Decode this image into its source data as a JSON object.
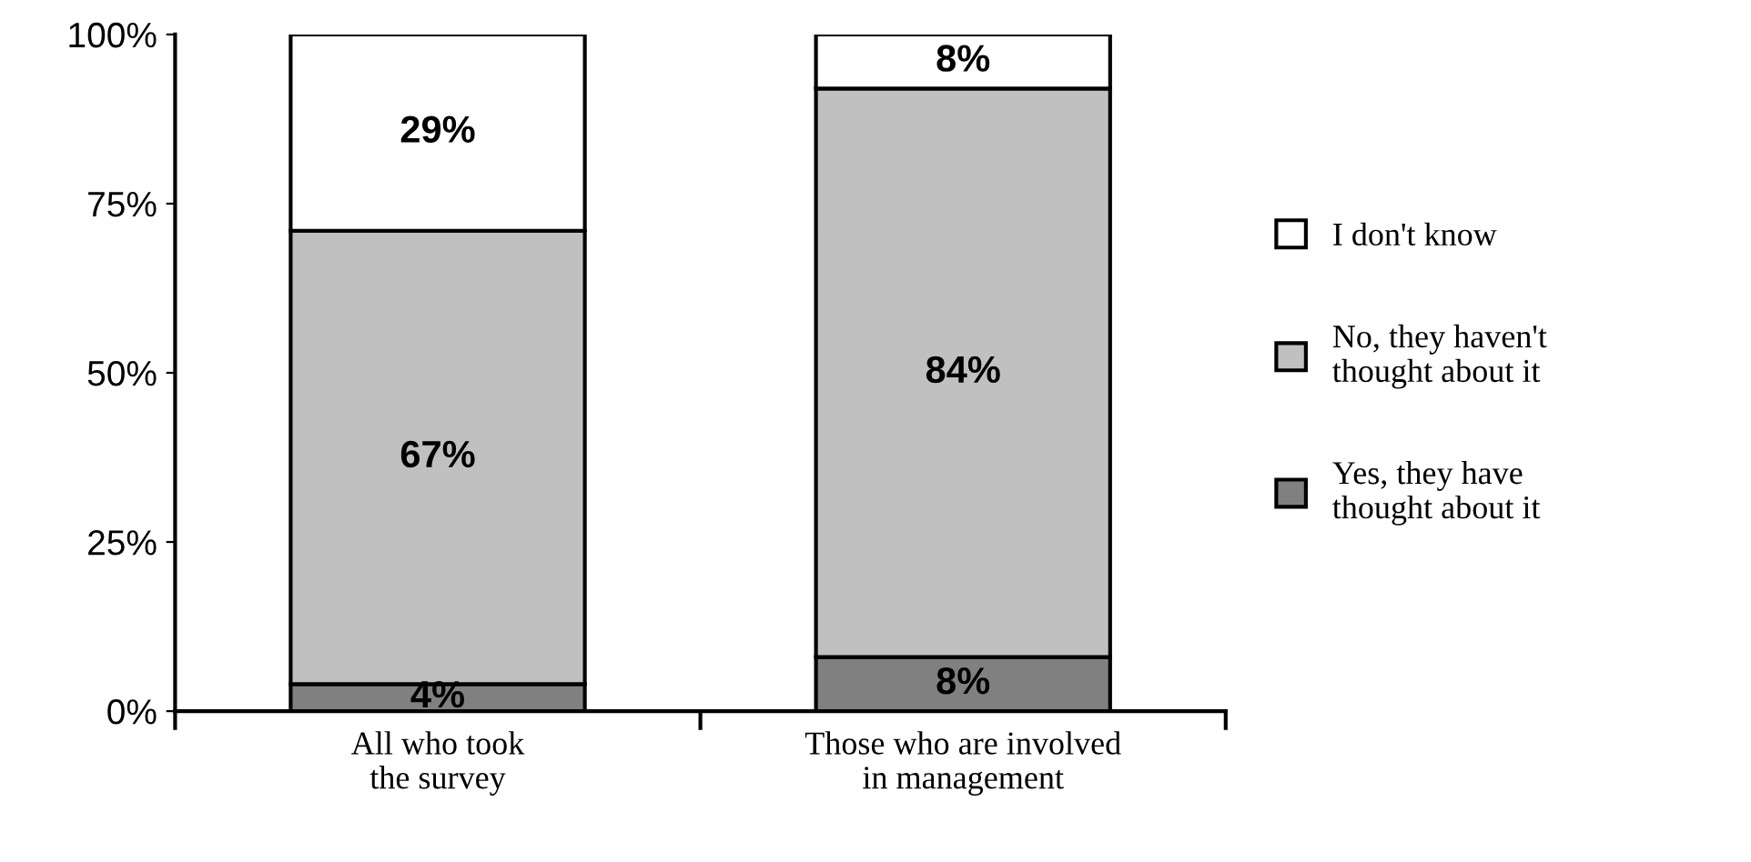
{
  "chart_data": {
    "type": "bar",
    "stacked": true,
    "categories": [
      "All who took\nthe survey",
      "Those who are involved\nin management"
    ],
    "series": [
      {
        "name": "Yes, they have\nthought about it",
        "color": "#808080",
        "values": [
          4,
          8
        ]
      },
      {
        "name": "No, they haven't\nthought about it",
        "color": "#c0c0c0",
        "values": [
          67,
          84
        ]
      },
      {
        "name": "I don't know",
        "color": "#ffffff",
        "values": [
          29,
          8
        ]
      }
    ],
    "ylim": [
      0,
      100
    ],
    "yticks": [
      {
        "value": 0,
        "label": "0%"
      },
      {
        "value": 25,
        "label": "25%"
      },
      {
        "value": 50,
        "label": "50%"
      },
      {
        "value": 75,
        "label": "75%"
      },
      {
        "value": 100,
        "label": "100%"
      }
    ],
    "value_labels": [
      [
        "4%",
        "8%"
      ],
      [
        "67%",
        "84%"
      ],
      [
        "29%",
        "8%"
      ]
    ],
    "grid": false,
    "legend": "right"
  }
}
